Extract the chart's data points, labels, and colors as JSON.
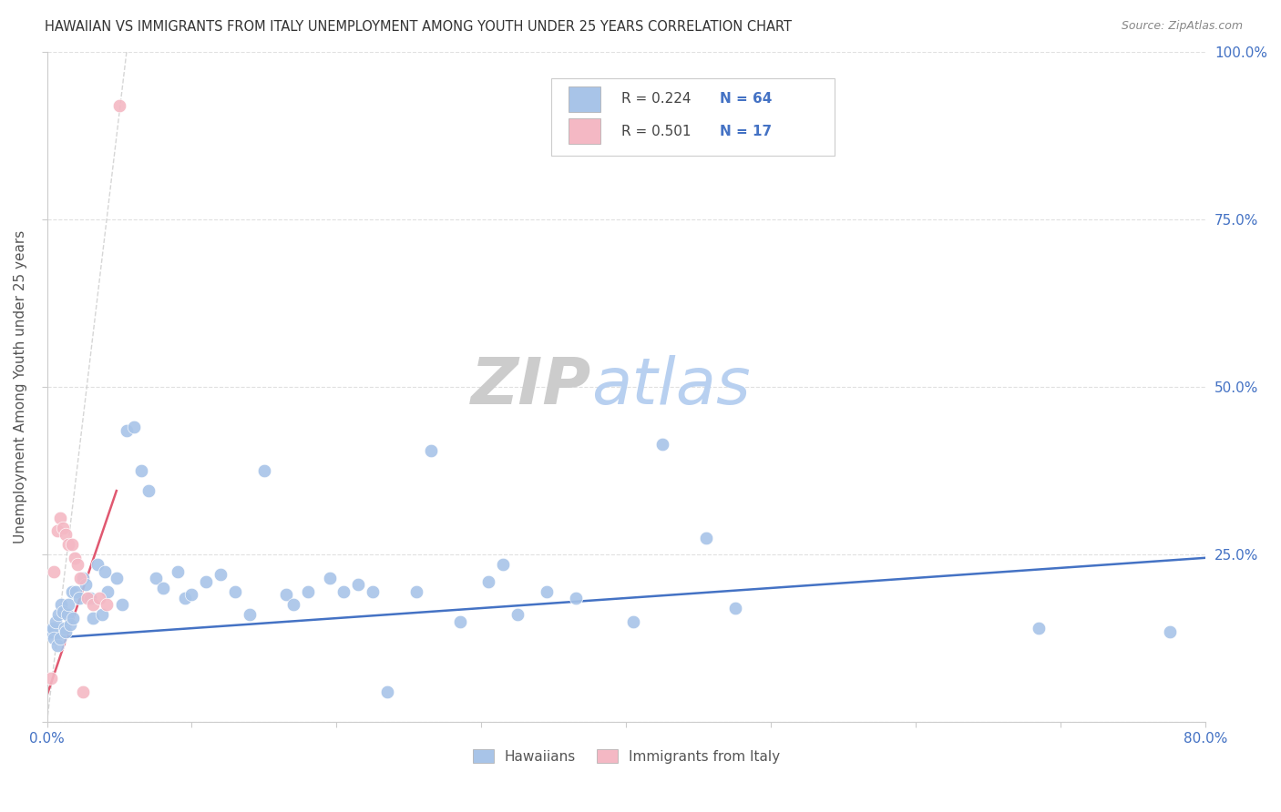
{
  "title": "HAWAIIAN VS IMMIGRANTS FROM ITALY UNEMPLOYMENT AMONG YOUTH UNDER 25 YEARS CORRELATION CHART",
  "source": "Source: ZipAtlas.com",
  "ylabel": "Unemployment Among Youth under 25 years",
  "xlim": [
    0,
    0.8
  ],
  "ylim": [
    0,
    1.0
  ],
  "blue_color": "#a8c4e8",
  "pink_color": "#f4b8c4",
  "blue_line_color": "#4472c4",
  "pink_line_color": "#e05870",
  "dashed_line_color": "#cccccc",
  "zip_watermark_color": "#cccccc",
  "atlas_watermark_color": "#b8d0f0",
  "background_color": "#ffffff",
  "grid_color": "#e0e0e0",
  "hawaiians_x": [
    0.003,
    0.004,
    0.005,
    0.006,
    0.007,
    0.008,
    0.009,
    0.01,
    0.011,
    0.012,
    0.013,
    0.014,
    0.015,
    0.016,
    0.017,
    0.018,
    0.02,
    0.022,
    0.025,
    0.027,
    0.03,
    0.032,
    0.035,
    0.038,
    0.04,
    0.042,
    0.048,
    0.052,
    0.055,
    0.06,
    0.065,
    0.07,
    0.075,
    0.08,
    0.09,
    0.095,
    0.1,
    0.11,
    0.12,
    0.13,
    0.14,
    0.15,
    0.165,
    0.17,
    0.18,
    0.195,
    0.205,
    0.215,
    0.225,
    0.235,
    0.255,
    0.265,
    0.285,
    0.305,
    0.315,
    0.325,
    0.345,
    0.365,
    0.405,
    0.425,
    0.455,
    0.475,
    0.685,
    0.775
  ],
  "hawaiians_y": [
    0.135,
    0.14,
    0.125,
    0.15,
    0.115,
    0.16,
    0.125,
    0.175,
    0.165,
    0.14,
    0.135,
    0.16,
    0.175,
    0.145,
    0.195,
    0.155,
    0.195,
    0.185,
    0.215,
    0.205,
    0.185,
    0.155,
    0.235,
    0.16,
    0.225,
    0.195,
    0.215,
    0.175,
    0.435,
    0.44,
    0.375,
    0.345,
    0.215,
    0.2,
    0.225,
    0.185,
    0.19,
    0.21,
    0.22,
    0.195,
    0.16,
    0.375,
    0.19,
    0.175,
    0.195,
    0.215,
    0.195,
    0.205,
    0.195,
    0.045,
    0.195,
    0.405,
    0.15,
    0.21,
    0.235,
    0.16,
    0.195,
    0.185,
    0.15,
    0.415,
    0.275,
    0.17,
    0.14,
    0.135
  ],
  "italy_x": [
    0.003,
    0.005,
    0.007,
    0.009,
    0.011,
    0.013,
    0.015,
    0.017,
    0.019,
    0.021,
    0.023,
    0.025,
    0.028,
    0.032,
    0.036,
    0.041,
    0.05
  ],
  "italy_y": [
    0.065,
    0.225,
    0.285,
    0.305,
    0.29,
    0.28,
    0.265,
    0.265,
    0.245,
    0.235,
    0.215,
    0.045,
    0.185,
    0.175,
    0.185,
    0.175,
    0.92
  ],
  "blue_trendline": [
    0.0,
    0.8,
    0.125,
    0.245
  ],
  "pink_trendline": [
    0.0,
    0.048,
    0.04,
    0.345
  ]
}
